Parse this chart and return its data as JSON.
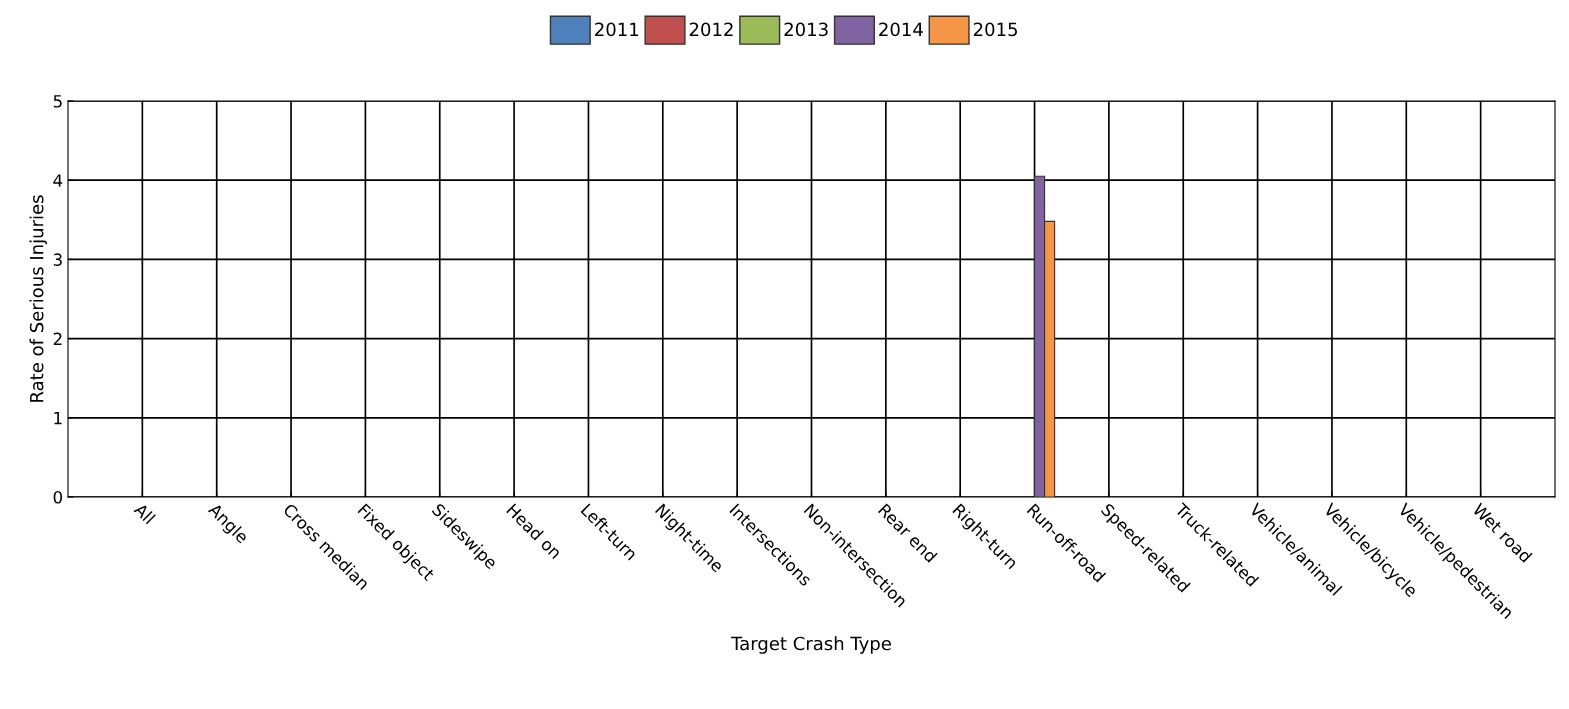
{
  "chart_data": {
    "type": "bar",
    "xlabel": "Target Crash Type",
    "ylabel": "Rate of Serious Injuries",
    "categories": [
      "All",
      "Angle",
      "Cross median",
      "Fixed object",
      "Sideswipe",
      "Head on",
      "Left-turn",
      "Night-time",
      "Intersections",
      "Non-intersection",
      "Rear end",
      "Right-turn",
      "Run-off-road",
      "Speed-related",
      "Truck-related",
      "Vehicle/animal",
      "Vehicle/bicycle",
      "Vehicle/pedestrian",
      "Wet road"
    ],
    "series": [
      {
        "name": "2011",
        "color": "#4f81bd",
        "values": [
          null,
          null,
          null,
          null,
          null,
          null,
          null,
          null,
          null,
          null,
          null,
          null,
          null,
          null,
          null,
          null,
          null,
          null,
          null
        ]
      },
      {
        "name": "2012",
        "color": "#c0504d",
        "values": [
          null,
          null,
          null,
          null,
          null,
          null,
          null,
          null,
          null,
          null,
          null,
          null,
          null,
          null,
          null,
          null,
          null,
          null,
          null
        ]
      },
      {
        "name": "2013",
        "color": "#9bbb59",
        "values": [
          null,
          null,
          null,
          null,
          null,
          null,
          null,
          null,
          null,
          null,
          null,
          null,
          null,
          null,
          null,
          null,
          null,
          null,
          null
        ]
      },
      {
        "name": "2014",
        "color": "#8064a2",
        "values": [
          null,
          null,
          null,
          null,
          null,
          null,
          null,
          null,
          null,
          null,
          null,
          null,
          4.05,
          null,
          null,
          null,
          null,
          null,
          null
        ]
      },
      {
        "name": "2015",
        "color": "#f79646",
        "values": [
          null,
          null,
          null,
          null,
          null,
          null,
          null,
          null,
          null,
          null,
          null,
          null,
          3.48,
          null,
          null,
          null,
          null,
          null,
          null
        ]
      }
    ],
    "ylim": [
      0,
      5
    ],
    "yticks": [
      0,
      1,
      2,
      3,
      4,
      5
    ],
    "grid": true,
    "legend": "top"
  }
}
